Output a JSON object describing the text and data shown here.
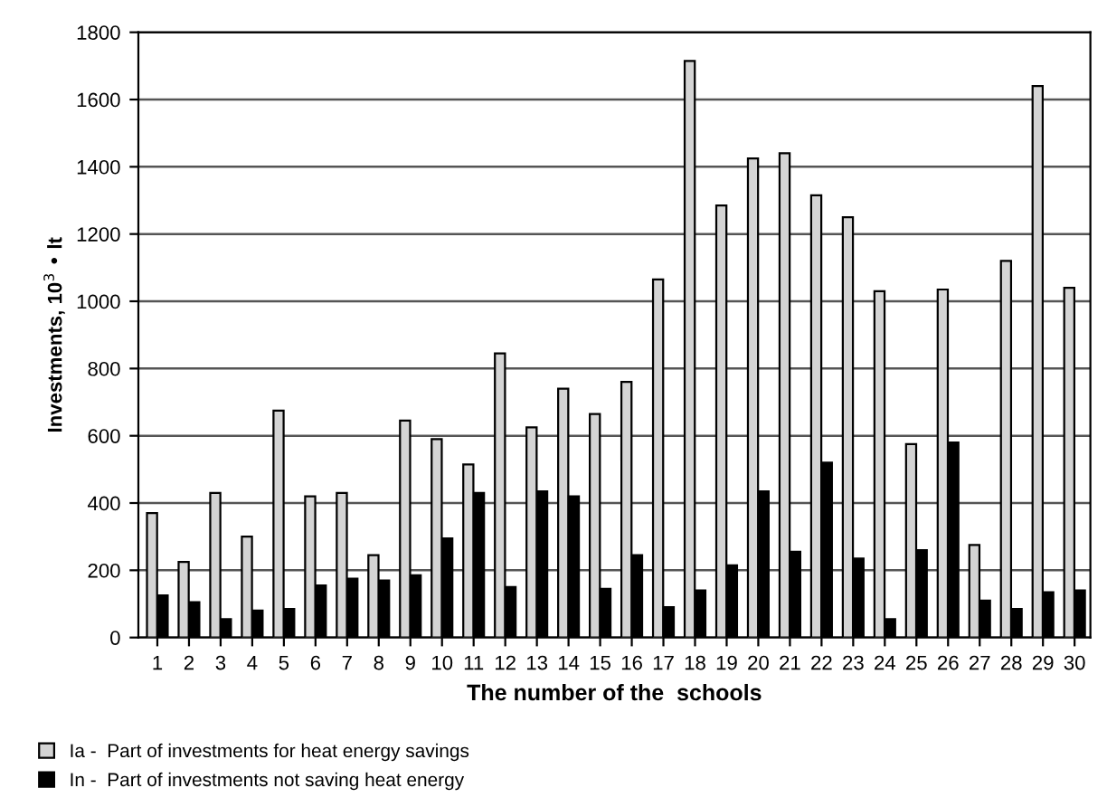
{
  "chart_data": {
    "type": "bar",
    "xlabel": "The number of the  schools",
    "ylabel": "Investments, 10$^{3}$ • lt",
    "categories": [
      "1",
      "2",
      "3",
      "4",
      "5",
      "6",
      "7",
      "8",
      "9",
      "10",
      "11",
      "12",
      "13",
      "14",
      "15",
      "16",
      "17",
      "18",
      "19",
      "20",
      "21",
      "22",
      "23",
      "24",
      "25",
      "26",
      "27",
      "28",
      "29",
      "30"
    ],
    "series": [
      {
        "name": "Ia -  Part of investments for heat energy savings",
        "color": "#d4d4d4",
        "values": [
          370,
          225,
          430,
          300,
          675,
          420,
          430,
          245,
          645,
          590,
          515,
          845,
          625,
          740,
          665,
          760,
          1065,
          1715,
          1285,
          1425,
          1440,
          1315,
          1250,
          1030,
          575,
          1035,
          275,
          1120,
          1640,
          1040
        ]
      },
      {
        "name": "In -  Part of investments not saving heat energy",
        "color": "#000000",
        "values": [
          125,
          105,
          55,
          80,
          85,
          155,
          175,
          170,
          185,
          295,
          430,
          150,
          435,
          420,
          145,
          245,
          90,
          140,
          215,
          435,
          255,
          520,
          235,
          55,
          260,
          580,
          110,
          85,
          135,
          140
        ]
      }
    ],
    "ylim": [
      0,
      1800
    ],
    "yticks": [
      0,
      200,
      400,
      600,
      800,
      1000,
      1200,
      1400,
      1600,
      1800
    ],
    "grid": "y",
    "legend": "bottom left"
  }
}
